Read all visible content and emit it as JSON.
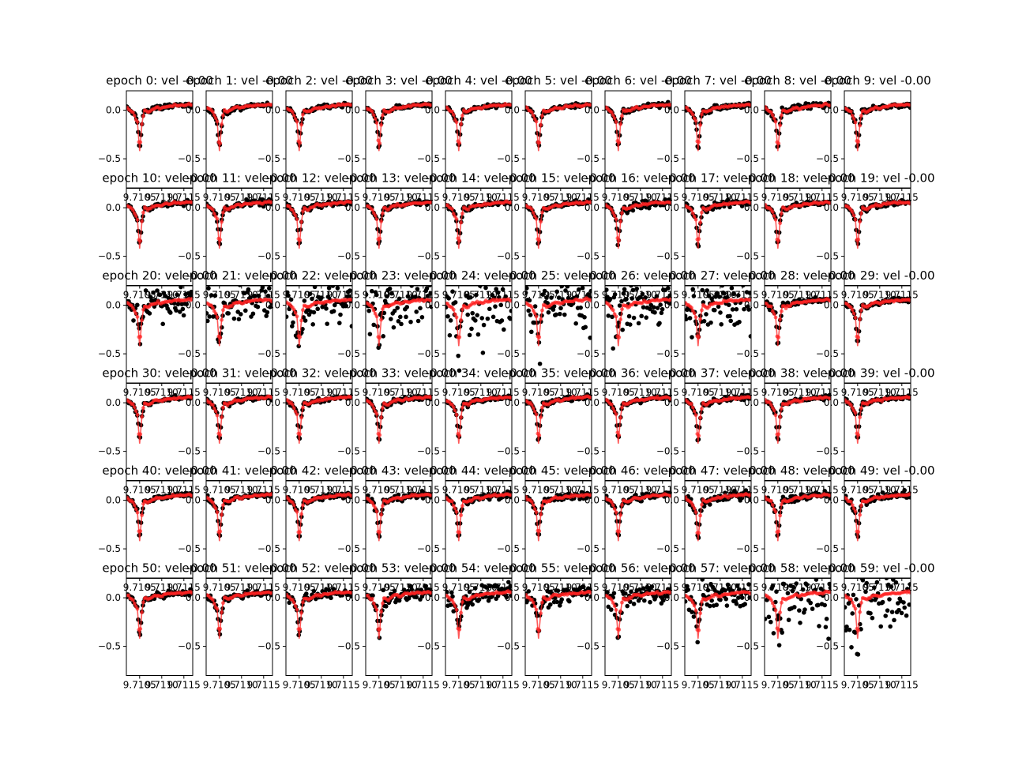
{
  "chart_data": {
    "type": "scatter",
    "layout": {
      "rows": 6,
      "cols": 10
    },
    "panel_titles": [
      "epoch 0: vel -0.00",
      "epoch 1: vel -0.00",
      "epoch 2: vel -0.00",
      "epoch 3: vel -0.00",
      "epoch 4: vel -0.00",
      "epoch 5: vel -0.00",
      "epoch 6: vel -0.00",
      "epoch 7: vel -0.00",
      "epoch 8: vel -0.00",
      "epoch 9: vel -0.00",
      "epoch 10: vel -0.00",
      "epoch 11: vel -0.00",
      "epoch 12: vel -0.00",
      "epoch 13: vel -0.00",
      "epoch 14: vel -0.00",
      "epoch 15: vel -0.00",
      "epoch 16: vel -0.00",
      "epoch 17: vel -0.00",
      "epoch 18: vel -0.00",
      "epoch 19: vel -0.00",
      "epoch 20: vel -0.00",
      "epoch 21: vel -0.00",
      "epoch 22: vel -0.00",
      "epoch 23: vel -0.00",
      "epoch 24: vel -0.00",
      "epoch 25: vel -0.00",
      "epoch 26: vel -0.00",
      "epoch 27: vel -0.00",
      "epoch 28: vel -0.00",
      "epoch 29: vel -0.00",
      "epoch 30: vel -0.00",
      "epoch 31: vel -0.00",
      "epoch 32: vel -0.00",
      "epoch 33: vel -0.00",
      "epoch 34: vel -0.00",
      "epoch 35: vel -0.00",
      "epoch 36: vel -0.00",
      "epoch 37: vel -0.00",
      "epoch 38: vel -0.00",
      "epoch 39: vel -0.00",
      "epoch 40: vel -0.00",
      "epoch 41: vel -0.00",
      "epoch 42: vel -0.00",
      "epoch 43: vel -0.00",
      "epoch 44: vel -0.00",
      "epoch 45: vel -0.00",
      "epoch 46: vel -0.00",
      "epoch 47: vel -0.00",
      "epoch 48: vel -0.00",
      "epoch 49: vel -0.00",
      "epoch 50: vel -0.00",
      "epoch 51: vel -0.00",
      "epoch 52: vel -0.00",
      "epoch 53: vel -0.00",
      "epoch 54: vel -0.00",
      "epoch 55: vel -0.00",
      "epoch 56: vel -0.00",
      "epoch 57: vel -0.00",
      "epoch 58: vel -0.00",
      "epoch 59: vel -0.00"
    ],
    "x_ticks": [
      "9.7105",
      "9.7110",
      "9.7115"
    ],
    "y_ticks": [
      0.0,
      -0.5
    ],
    "y_tick_labels": [
      "0.0",
      "−0.5"
    ],
    "xlim": [
      9.7102,
      9.7117
    ],
    "ylim": [
      -0.8,
      0.2
    ],
    "model_line": {
      "x": [
        9.7102,
        9.71035,
        9.71045,
        9.7105,
        9.71055,
        9.7106,
        9.7107,
        9.7108,
        9.7109,
        9.711,
        9.7111,
        9.7112,
        9.7113,
        9.7114,
        9.7115,
        9.7116,
        9.7117
      ],
      "y": [
        0.03,
        -0.02,
        -0.12,
        -0.42,
        -0.15,
        0.0,
        -0.02,
        0.01,
        0.03,
        0.02,
        0.04,
        0.04,
        0.05,
        0.05,
        0.05,
        0.06,
        0.05
      ]
    },
    "noise_level_per_epoch": [
      0.02,
      0.02,
      0.02,
      0.02,
      0.02,
      0.02,
      0.02,
      0.02,
      0.03,
      0.02,
      0.02,
      0.03,
      0.02,
      0.02,
      0.02,
      0.02,
      0.03,
      0.03,
      0.02,
      0.02,
      0.12,
      0.18,
      0.18,
      0.22,
      0.28,
      0.22,
      0.2,
      0.22,
      0.03,
      0.02,
      0.02,
      0.02,
      0.02,
      0.02,
      0.02,
      0.02,
      0.02,
      0.02,
      0.02,
      0.02,
      0.02,
      0.02,
      0.02,
      0.03,
      0.03,
      0.03,
      0.03,
      0.04,
      0.03,
      0.03,
      0.03,
      0.03,
      0.04,
      0.06,
      0.08,
      0.08,
      0.08,
      0.12,
      0.3,
      0.35
    ],
    "colors": {
      "data": "#000000",
      "model": "#ff2222",
      "axes": "#000000"
    },
    "grid": false,
    "legend": "none"
  }
}
